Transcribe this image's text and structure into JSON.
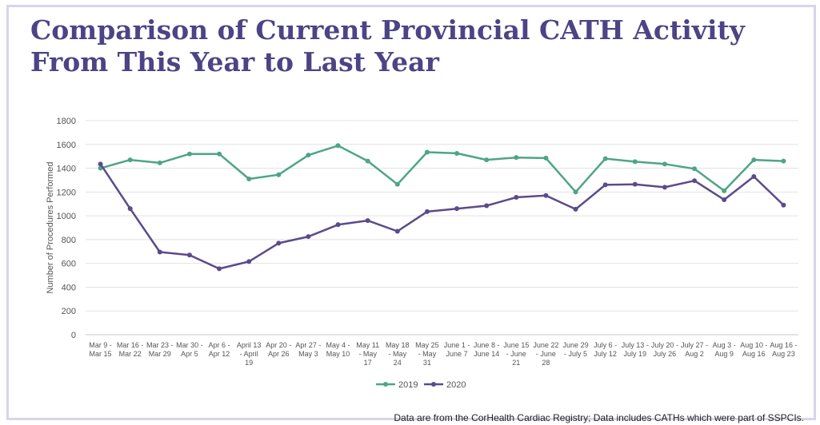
{
  "title": "Comparison of Current Provincial CATH Activity From This Year to Last Year",
  "footnote": "Data are from the CorHealth Cardiac Registry; Data includes CATHs which were part of SSPCIs.",
  "colors": {
    "title": "#4b4485",
    "series_2019": "#4ea585",
    "series_2020": "#5b4b8a",
    "grid": "#e2e2e2",
    "axis_text": "#555555"
  },
  "chart_data": {
    "type": "line",
    "title": "",
    "xlabel": "",
    "ylabel": "Number of Procedures Performed",
    "ylim": [
      0,
      1800
    ],
    "yticks": [
      0,
      200,
      400,
      600,
      800,
      1000,
      1200,
      1400,
      1600,
      1800
    ],
    "grid": true,
    "legend_position": "bottom",
    "categories": [
      [
        "Mar 9 -",
        "Mar 15"
      ],
      [
        "Mar 16 -",
        "Mar 22"
      ],
      [
        "Mar 23 -",
        "Mar 29"
      ],
      [
        "Mar 30 -",
        "Apr 5"
      ],
      [
        "Apr 6 -",
        "Apr 12"
      ],
      [
        "April 13",
        "- April",
        "19"
      ],
      [
        "Apr 20 -",
        "Apr 26"
      ],
      [
        "Apr 27 -",
        "May 3"
      ],
      [
        "May 4 -",
        "May 10"
      ],
      [
        "May 11",
        "- May",
        "17"
      ],
      [
        "May 18",
        "- May",
        "24"
      ],
      [
        "May 25",
        "- May",
        "31"
      ],
      [
        "June 1 -",
        "June 7"
      ],
      [
        "June 8 -",
        "June 14"
      ],
      [
        "June 15",
        "- June",
        "21"
      ],
      [
        "June 22",
        "- June",
        "28"
      ],
      [
        "June 29",
        "- July 5"
      ],
      [
        "July 6 -",
        "July 12"
      ],
      [
        "July 13 -",
        "July 19"
      ],
      [
        "July 20 -",
        "July 26"
      ],
      [
        "July 27 -",
        "Aug 2"
      ],
      [
        "Aug 3 -",
        "Aug 9"
      ],
      [
        "Aug 10 -",
        "Aug 16"
      ],
      [
        "Aug 16 -",
        "Aug 23"
      ]
    ],
    "series": [
      {
        "name": "2019",
        "color": "#4ea585",
        "values": [
          1400,
          1470,
          1445,
          1520,
          1520,
          1310,
          1345,
          1510,
          1590,
          1460,
          1265,
          1535,
          1525,
          1470,
          1490,
          1485,
          1200,
          1480,
          1455,
          1435,
          1395,
          1210,
          1470,
          1460
        ]
      },
      {
        "name": "2020",
        "color": "#5b4b8a",
        "values": [
          1435,
          1060,
          695,
          670,
          555,
          615,
          770,
          825,
          925,
          960,
          870,
          1035,
          1060,
          1085,
          1155,
          1170,
          1055,
          1260,
          1265,
          1240,
          1295,
          1135,
          1330,
          1090
        ]
      }
    ]
  }
}
